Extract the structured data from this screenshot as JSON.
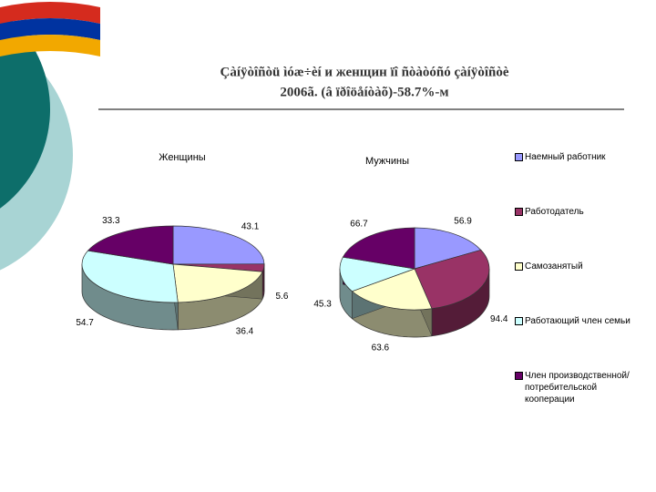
{
  "slide": {
    "title_lines": [
      "Çàíÿòîñòü ìóæ÷èí и женщин ïî ñòàòóñó çàíÿòîñòè",
      "2006ã. (â ïðîöåíòàõ)-58.7%-м"
    ]
  },
  "legend": {
    "labels": [
      "Наемный работник",
      "Работодатель",
      "Самозанятый",
      "Работающий член семьи",
      "Член производственной/потребительской кооперации"
    ],
    "colors": [
      "#9999ff",
      "#993366",
      "#ffffcc",
      "#ccffff",
      "#660066"
    ]
  },
  "chart_data": [
    {
      "type": "pie",
      "title": "Женщины",
      "values": [
        43.1,
        5.6,
        36.4,
        54.7,
        33.3
      ]
    },
    {
      "type": "pie",
      "title": "Мужчины",
      "values": [
        56.9,
        94.4,
        63.6,
        45.3,
        66.7
      ]
    }
  ]
}
